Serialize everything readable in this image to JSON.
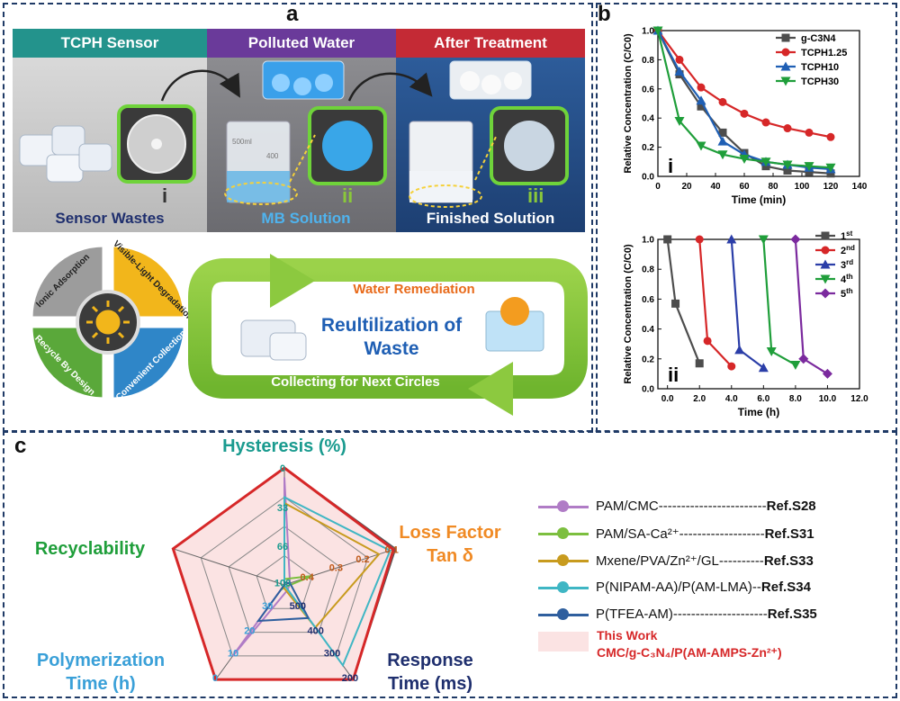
{
  "panel_a": {
    "label": "a",
    "headers": [
      "TCPH Sensor",
      "Polluted Water",
      "After Treatment"
    ],
    "roman": [
      "i",
      "ii",
      "iii"
    ],
    "captions": [
      "Sensor Wastes",
      "MB Solution",
      "Finished Solution"
    ],
    "beaker_marks": [
      "500ml",
      "400"
    ],
    "wheel": [
      "Ionic Adsorption",
      "Visible-Light Degradation",
      "Convenient Collection",
      "Recycle By Design"
    ],
    "cycle": {
      "top": "Water Remediation",
      "center_l1": "Reultilization of",
      "center_l2": "Waste",
      "bottom": "Collecting for Next Circles"
    }
  },
  "chart_data": [
    {
      "type": "line",
      "panel_label": "b",
      "inner_label": "i",
      "xlabel": "Time (min)",
      "ylabel": "Relative Concentration (C/C0)",
      "xlim": [
        0,
        140
      ],
      "ylim": [
        0,
        1.0
      ],
      "xticks": [
        "0",
        "20",
        "40",
        "60",
        "80",
        "100",
        "120",
        "140"
      ],
      "yticks": [
        "0.0",
        "0.2",
        "0.4",
        "0.6",
        "0.8",
        "1.0"
      ],
      "legend_position": "top-right",
      "series": [
        {
          "name": "g-C3N4",
          "color": "#4d4d4d",
          "marker": "square",
          "x": [
            0,
            15,
            30,
            45,
            60,
            75,
            90,
            105,
            120
          ],
          "y": [
            1.0,
            0.7,
            0.48,
            0.3,
            0.16,
            0.07,
            0.04,
            0.03,
            0.02
          ]
        },
        {
          "name": "TCPH1.25",
          "color": "#d62728",
          "marker": "circle",
          "x": [
            0,
            15,
            30,
            45,
            60,
            75,
            90,
            105,
            120
          ],
          "y": [
            1.0,
            0.8,
            0.61,
            0.51,
            0.43,
            0.37,
            0.33,
            0.3,
            0.27
          ]
        },
        {
          "name": "TCPH10",
          "color": "#1f5fb4",
          "marker": "triangle-up",
          "x": [
            0,
            15,
            30,
            45,
            60,
            75,
            90,
            105,
            120
          ],
          "y": [
            1.0,
            0.72,
            0.52,
            0.24,
            0.15,
            0.1,
            0.08,
            0.06,
            0.05
          ]
        },
        {
          "name": "TCPH30",
          "color": "#1f9e3a",
          "marker": "triangle-down",
          "x": [
            0,
            15,
            30,
            45,
            60,
            75,
            90,
            105,
            120
          ],
          "y": [
            1.0,
            0.38,
            0.21,
            0.15,
            0.12,
            0.1,
            0.08,
            0.07,
            0.06
          ]
        }
      ]
    },
    {
      "type": "line",
      "inner_label": "ii",
      "xlabel": "Time (h)",
      "ylabel": "Relative Concentration (C/C0)",
      "xlim": [
        -0.6,
        12
      ],
      "ylim": [
        0,
        1.0
      ],
      "xticks": [
        "0.0",
        "2.0",
        "4.0",
        "6.0",
        "8.0",
        "10.0",
        "12.0"
      ],
      "yticks": [
        "0.0",
        "0.2",
        "0.4",
        "0.6",
        "0.8",
        "1.0"
      ],
      "legend_position": "top-right",
      "series": [
        {
          "name": "1st",
          "color": "#4d4d4d",
          "marker": "square",
          "x": [
            0,
            0.5,
            2.0
          ],
          "y": [
            1.0,
            0.57,
            0.17
          ]
        },
        {
          "name": "2nd",
          "color": "#d62728",
          "marker": "circle",
          "x": [
            2.0,
            2.5,
            4.0
          ],
          "y": [
            1.0,
            0.32,
            0.15
          ]
        },
        {
          "name": "3rd",
          "color": "#2b3ea8",
          "marker": "triangle-up",
          "x": [
            4.0,
            4.5,
            6.0
          ],
          "y": [
            1.0,
            0.26,
            0.14
          ]
        },
        {
          "name": "4th",
          "color": "#1f9e3a",
          "marker": "triangle-down",
          "x": [
            6.0,
            6.5,
            8.0
          ],
          "y": [
            1.0,
            0.25,
            0.16
          ]
        },
        {
          "name": "5th",
          "color": "#7b2a9e",
          "marker": "diamond",
          "x": [
            8.0,
            8.5,
            10.0
          ],
          "y": [
            1.0,
            0.2,
            0.1
          ]
        }
      ]
    },
    {
      "type": "radar",
      "panel_label": "c",
      "axes": [
        {
          "label": "Hysteresis (%)",
          "color": "#1a9b8f",
          "ticks": [
            "0",
            "33",
            "66",
            "100"
          ],
          "tick_color": "#1a9b8f"
        },
        {
          "label_l1": "Loss Factor",
          "label_l2": "Tan δ",
          "color": "#f08a24",
          "ticks": [
            "0.1",
            "0.2",
            "0.3",
            "0.4"
          ],
          "tick_color": "#c05a1a"
        },
        {
          "label_l1": "Response",
          "label_l2": "Time (ms)",
          "color": "#1f2f6e",
          "ticks": [
            "200",
            "300",
            "400",
            "500"
          ],
          "tick_color": "#1f2f6e"
        },
        {
          "label_l1": "Polymerization",
          "label_l2": "Time (h)",
          "color": "#3aa0d8",
          "ticks": [
            "0",
            "10",
            "20",
            "30"
          ],
          "tick_color": "#3aa0d8"
        },
        {
          "label": "Recyclability",
          "color": "#1f9e3a",
          "ticks": []
        }
      ],
      "series": [
        {
          "name": "PAM/CMC",
          "ref": "Ref.S28",
          "color": "#b07cc6",
          "values": [
            0.92,
            0.05,
            0.05,
            0.75,
            0.0
          ]
        },
        {
          "name": "PAM/SA-Ca2+",
          "ref": "Ref.S31",
          "color": "#7cbf3f",
          "values": [
            0.05,
            0.25,
            0.02,
            0.05,
            0.0
          ]
        },
        {
          "name": "Mxene/PVA/Zn2+/GL",
          "ref": "Ref.S33",
          "color": "#c89b1e",
          "values": [
            0.7,
            0.85,
            0.45,
            0.02,
            0.0
          ]
        },
        {
          "name": "P(NIPAM-AA)/P(AM-LMA)",
          "ref": "Ref.S34",
          "color": "#3fb6c4",
          "values": [
            0.75,
            0.95,
            0.85,
            0.0,
            0.0
          ]
        },
        {
          "name": "P(TFEA-AM)",
          "ref": "Ref.S35",
          "color": "#2f5f9e",
          "values": [
            0.02,
            0.05,
            0.35,
            0.38,
            0.0
          ]
        },
        {
          "name": "This Work",
          "name_l2": "CMC/g-C3N4/P(AM-AMPS-Zn2+)",
          "color": "#d62728",
          "fill": "#fbe3e3",
          "values": [
            1.0,
            0.98,
            1.0,
            1.0,
            1.0
          ]
        }
      ]
    }
  ],
  "legend_c": [
    {
      "text": "PAM/CMC------------------------",
      "ref": "Ref.S28"
    },
    {
      "text": "PAM/SA-Ca²⁺-------------------",
      "ref": "Ref.S31"
    },
    {
      "text": "Mxene/PVA/Zn²⁺/GL----------",
      "ref": "Ref.S33"
    },
    {
      "text": "P(NIPAM-AA)/P(AM-LMA)--",
      "ref": "Ref.S34"
    },
    {
      "text": "P(TFEA-AM)---------------------",
      "ref": "Ref.S35"
    }
  ],
  "this_work": {
    "l1": "This Work",
    "l2": "CMC/g-C₃N₄/P(AM-AMPS-Zn²⁺)"
  }
}
